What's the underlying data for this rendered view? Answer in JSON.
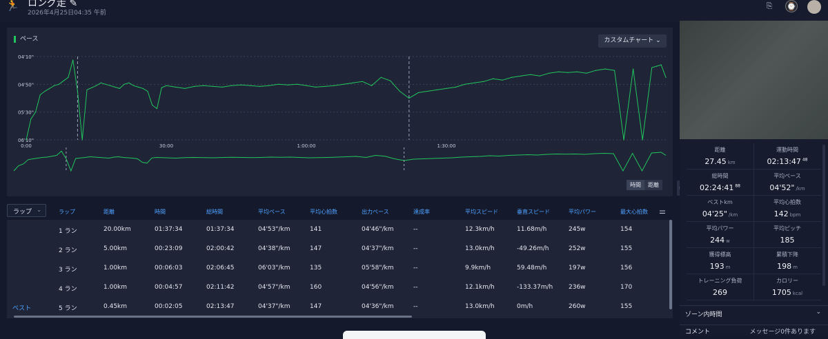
{
  "header": {
    "title": "ロング走",
    "subtitle": "2026年4月25日04:35 午前"
  },
  "chart": {
    "title": "ペース",
    "custom_button": "カスタムチャート",
    "x_toggle": [
      "時間",
      "距離"
    ],
    "colors": {
      "line": "#22c55e",
      "grid": "#3a4156",
      "lap_marker": "#9aa3b8"
    }
  },
  "chart_data": {
    "type": "line",
    "ylabel": "",
    "xlabel": "",
    "y_ticks": [
      "04'10\"",
      "04'50\"",
      "05'30\"",
      "06'10\""
    ],
    "x_ticks": [
      "0:00",
      "30:00",
      "1:00:00",
      "1:30:00"
    ],
    "ylim_sec_per_km": [
      250,
      370
    ],
    "xlim_min": [
      0,
      137
    ],
    "lap_markers_min": [
      11,
      82
    ],
    "series": [
      {
        "x": [
          0,
          1,
          2,
          3,
          4,
          5,
          6,
          7,
          8,
          9,
          10,
          11,
          12,
          13,
          14,
          15,
          16,
          17,
          18,
          19,
          20,
          21,
          22,
          23,
          24,
          25,
          26,
          27,
          28,
          29,
          30,
          32,
          34,
          36,
          38,
          40,
          42,
          44,
          46,
          48,
          50,
          52,
          54,
          56,
          58,
          60,
          62,
          64,
          66,
          68,
          70,
          72,
          74,
          76,
          78,
          80,
          82,
          84,
          86,
          88,
          90,
          92,
          94,
          96,
          98,
          100,
          102,
          104,
          106,
          108,
          110,
          112,
          114,
          116,
          118,
          120,
          122,
          124,
          126,
          128,
          130,
          132,
          134,
          135,
          136,
          137
        ],
        "y": [
          370,
          340,
          330,
          305,
          300,
          296,
          292,
          290,
          285,
          280,
          255,
          300,
          370,
          298,
          295,
          292,
          288,
          290,
          292,
          294,
          296,
          290,
          288,
          292,
          294,
          296,
          300,
          320,
          325,
          295,
          292,
          294,
          296,
          293,
          292,
          293,
          294,
          292,
          291,
          292,
          293,
          292,
          290,
          291,
          290,
          292,
          294,
          293,
          292,
          290,
          288,
          286,
          292,
          280,
          285,
          300,
          310,
          302,
          300,
          298,
          296,
          294,
          290,
          288,
          286,
          282,
          284,
          280,
          278,
          276,
          278,
          274,
          272,
          273,
          272,
          274,
          270,
          268,
          270,
          370,
          268,
          370,
          266,
          264,
          262,
          280
        ]
      }
    ]
  },
  "laps": {
    "dropdown": "ラップ",
    "columns": [
      "ラップ",
      "距離",
      "時間",
      "総時間",
      "平均ペース",
      "平均心拍数",
      "出力ペース",
      "達成率",
      "平均スピード",
      "垂直スピード",
      "平均パワー",
      "最大心拍数"
    ],
    "rows": [
      [
        "1 ラン",
        "20.00km",
        "01:37:34",
        "01:37:34",
        "04'53\"/km",
        "141",
        "04'46\"/km",
        "--",
        "12.3km/h",
        "11.68m/h",
        "245w",
        "154"
      ],
      [
        "2 ラン",
        "5.00km",
        "00:23:09",
        "02:00:42",
        "04'38\"/km",
        "147",
        "04'37\"/km",
        "--",
        "13.0km/h",
        "-49.26m/h",
        "252w",
        "155"
      ],
      [
        "3 ラン",
        "1.00km",
        "00:06:03",
        "02:06:45",
        "06'03\"/km",
        "135",
        "05'58\"/km",
        "--",
        "9.9km/h",
        "59.48m/h",
        "197w",
        "156"
      ],
      [
        "4 ラン",
        "1.00km",
        "00:04:57",
        "02:11:42",
        "04'57\"/km",
        "160",
        "04'56\"/km",
        "--",
        "12.1km/h",
        "-133.37m/h",
        "236w",
        "170"
      ],
      [
        "5 ラン",
        "0.45km",
        "00:02:05",
        "02:13:47",
        "04'37\"/km",
        "147",
        "04'36\"/km",
        "--",
        "13.0km/h",
        "0m/h",
        "260w",
        "155"
      ]
    ],
    "best_label": "ベスト"
  },
  "stats": [
    [
      {
        "label": "距離",
        "value": "27.45",
        "unit": "km"
      },
      {
        "label": "運動時間",
        "value": "02:13:47",
        "sup": "48"
      }
    ],
    [
      {
        "label": "総時間",
        "value": "02:24:41",
        "sup": "88"
      },
      {
        "label": "平均ペース",
        "value": "04'52\"",
        "unit": "/km"
      }
    ],
    [
      {
        "label": "ベストkm",
        "value": "04'25\"",
        "unit": "/km"
      },
      {
        "label": "平均心拍数",
        "value": "142",
        "unit": "bpm"
      }
    ],
    [
      {
        "label": "平均パワー",
        "value": "244",
        "unit": "w"
      },
      {
        "label": "平均ピッチ",
        "value": "185"
      }
    ],
    [
      {
        "label": "獲得標高",
        "value": "193",
        "unit": "m"
      },
      {
        "label": "累積下降",
        "value": "198",
        "unit": "m"
      }
    ],
    [
      {
        "label": "トレーニング負荷",
        "value": "269"
      },
      {
        "label": "カロリー",
        "value": "1705",
        "unit": "kcal"
      }
    ]
  ],
  "zone": {
    "label": "ゾーン内時間"
  },
  "comment": {
    "label": "コメント",
    "note": "メッセージ0件あります"
  }
}
